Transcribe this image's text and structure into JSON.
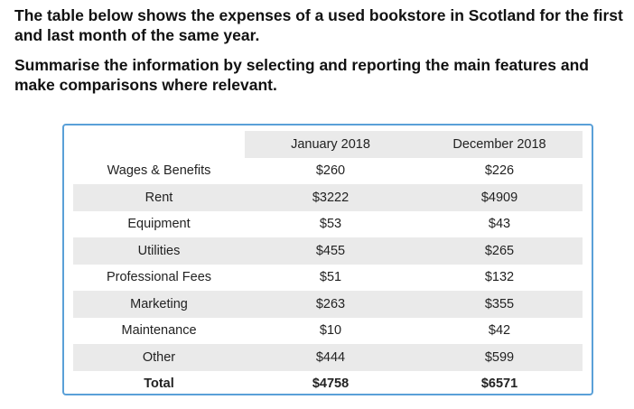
{
  "prompt": {
    "line1": "The table below shows the expenses of a used bookstore in Scotland for the first and last month of the same year.",
    "line2": "Summarise the information by selecting and reporting the main features and make comparisons where relevant."
  },
  "chart_data": {
    "type": "table",
    "columns": [
      "",
      "January 2018",
      "December 2018"
    ],
    "rows": [
      {
        "label": "Wages & Benefits",
        "values": [
          "$260",
          "$226"
        ]
      },
      {
        "label": "Rent",
        "values": [
          "$3222",
          "$4909"
        ]
      },
      {
        "label": "Equipment",
        "values": [
          "$53",
          "$43"
        ]
      },
      {
        "label": "Utilities",
        "values": [
          "$455",
          "$265"
        ]
      },
      {
        "label": "Professional Fees",
        "values": [
          "$51",
          "$132"
        ]
      },
      {
        "label": "Marketing",
        "values": [
          "$263",
          "$355"
        ]
      },
      {
        "label": "Maintenance",
        "values": [
          "$10",
          "$42"
        ]
      },
      {
        "label": "Other",
        "values": [
          "$444",
          "$599"
        ]
      },
      {
        "label": "Total",
        "values": [
          "$4758",
          "$6571"
        ]
      }
    ],
    "row_stripe_color": "#eaeaea",
    "border_color": "#5aa0d8"
  }
}
